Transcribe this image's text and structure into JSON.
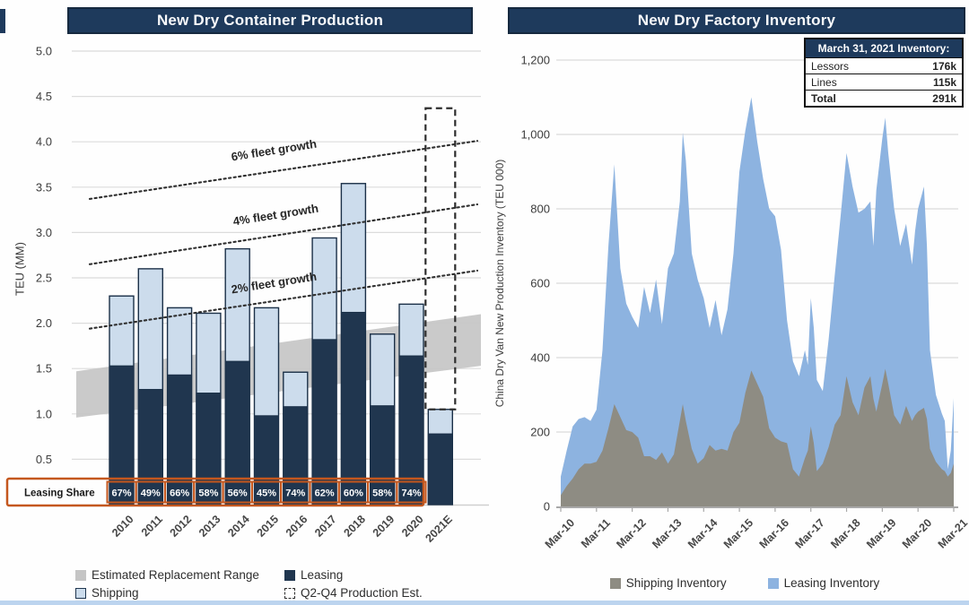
{
  "chart_data": [
    {
      "id": "production",
      "type": "bar",
      "title": "New Dry Container Production",
      "ylabel": "TEU (MM)",
      "ylim": [
        0,
        5.0
      ],
      "ytick_step": 0.5,
      "ytick_labels": [
        "0.5",
        "1.0",
        "1.5",
        "2.0",
        "2.5",
        "3.0",
        "3.5",
        "4.0",
        "4.5",
        "5.0"
      ],
      "categories": [
        "2010",
        "2011",
        "2012",
        "2013",
        "2014",
        "2015",
        "2016",
        "2017",
        "2018",
        "2019",
        "2020",
        "2021E"
      ],
      "series": [
        {
          "name": "Leasing",
          "color": "#20364f",
          "values": [
            1.53,
            1.27,
            1.43,
            1.23,
            1.58,
            0.98,
            1.08,
            1.82,
            2.12,
            1.09,
            1.64,
            0.78
          ]
        },
        {
          "name": "Shipping",
          "color": "#ccdcec",
          "values": [
            0.77,
            1.33,
            0.74,
            0.88,
            1.24,
            1.19,
            0.38,
            1.12,
            1.42,
            0.79,
            0.57,
            0.27
          ]
        }
      ],
      "bar_totals": [
        2.3,
        2.6,
        2.17,
        2.11,
        2.82,
        2.17,
        1.46,
        2.94,
        3.54,
        1.88,
        2.21,
        1.05
      ],
      "leasing_share": {
        "label": "Leasing Share",
        "values": [
          "67%",
          "49%",
          "66%",
          "58%",
          "56%",
          "45%",
          "74%",
          "62%",
          "60%",
          "58%",
          "74%"
        ],
        "box_color": "#c4571e"
      },
      "growth_lines": [
        {
          "label": "2% fleet growth",
          "start": 1.94,
          "end": 2.58
        },
        {
          "label": "4% fleet growth",
          "start": 2.65,
          "end": 3.31
        },
        {
          "label": "6% fleet growth",
          "start": 3.37,
          "end": 4.01
        }
      ],
      "replacement_band": {
        "label": "Estimated Replacement Range",
        "start_range": [
          0.96,
          1.47
        ],
        "end_range": [
          1.53,
          2.1
        ],
        "color": "#c5c5c5"
      },
      "production_est_box": {
        "label": "Q2-Q4 Production Est.",
        "category": "2021E",
        "from": 1.05,
        "to": 4.37
      },
      "legend": [
        {
          "name": "Estimated Replacement Range",
          "swatch": "band"
        },
        {
          "name": "Leasing",
          "swatch": "leasing"
        },
        {
          "name": "Shipping",
          "swatch": "shipping"
        },
        {
          "name": "Q2-Q4 Production Est.",
          "swatch": "dashed"
        }
      ]
    },
    {
      "id": "inventory",
      "type": "area",
      "stacked": true,
      "title": "New Dry Factory Inventory",
      "ylabel": "China Dry Van New Production Inventory (TEU 000)",
      "ylim": [
        0,
        1200
      ],
      "ytick_step": 200,
      "ytick_labels": [
        "0",
        "200",
        "400",
        "600",
        "800",
        "1,000",
        "1,200"
      ],
      "xtick_labels": [
        "Mar-10",
        "Mar-11",
        "Mar-12",
        "Mar-13",
        "Mar-14",
        "Mar-15",
        "Mar-16",
        "Mar-17",
        "Mar-18",
        "Mar-19",
        "Mar-20",
        "Mar-21"
      ],
      "months_per_xtick": 12,
      "x_months": [
        0,
        2,
        4,
        6,
        8,
        10,
        12,
        14,
        16,
        18,
        20,
        22,
        24,
        26,
        28,
        30,
        32,
        34,
        36,
        38,
        40,
        41,
        42,
        44,
        46,
        48,
        50,
        52,
        54,
        56,
        58,
        60,
        62,
        64,
        66,
        68,
        70,
        72,
        74,
        76,
        78,
        80,
        82,
        83,
        84,
        85,
        86,
        88,
        90,
        92,
        94,
        96,
        98,
        100,
        102,
        104,
        105,
        106,
        108,
        109,
        110,
        112,
        114,
        116,
        118,
        119,
        120,
        122,
        123,
        124,
        126,
        128,
        129,
        130,
        131,
        132
      ],
      "series": [
        {
          "name": "Shipping Inventory",
          "color": "#8e8c83",
          "values": [
            30,
            55,
            75,
            100,
            115,
            115,
            120,
            150,
            210,
            275,
            240,
            205,
            200,
            185,
            135,
            135,
            125,
            145,
            115,
            140,
            230,
            275,
            230,
            155,
            115,
            130,
            165,
            150,
            155,
            150,
            200,
            225,
            305,
            365,
            330,
            295,
            210,
            185,
            175,
            170,
            100,
            80,
            130,
            150,
            215,
            170,
            95,
            115,
            160,
            220,
            245,
            350,
            280,
            245,
            320,
            350,
            290,
            255,
            330,
            370,
            330,
            245,
            220,
            270,
            230,
            245,
            255,
            265,
            235,
            155,
            120,
            100,
            95,
            80,
            90,
            115
          ]
        },
        {
          "name": "Leasing Inventory",
          "color": "#8db3e0",
          "values": [
            50,
            95,
            140,
            135,
            125,
            115,
            140,
            270,
            490,
            645,
            400,
            340,
            310,
            295,
            455,
            385,
            485,
            345,
            525,
            540,
            590,
            730,
            700,
            525,
            495,
            430,
            315,
            405,
            305,
            380,
            480,
            675,
            705,
            735,
            650,
            585,
            590,
            595,
            515,
            330,
            290,
            270,
            290,
            230,
            345,
            310,
            245,
            195,
            290,
            400,
            535,
            600,
            580,
            545,
            480,
            470,
            410,
            595,
            660,
            675,
            620,
            555,
            480,
            490,
            420,
            495,
            545,
            595,
            465,
            265,
            180,
            150,
            135,
            20,
            60,
            176
          ]
        }
      ],
      "inventory_table": {
        "title": "March 31, 2021 Inventory:",
        "rows": [
          {
            "label": "Lessors",
            "value": "176k"
          },
          {
            "label": "Lines",
            "value": "115k"
          },
          {
            "label": "Total",
            "value": "291k"
          }
        ]
      }
    }
  ],
  "colors": {
    "title_bar": "#1e3a5c",
    "leasing_bar": "#20364f",
    "shipping_bar": "#ccdcec",
    "replacement_band": "#c5c5c5",
    "leasing_share_box": "#c4571e",
    "inventory_leasing": "#8db3e0",
    "inventory_shipping": "#8e8c83",
    "gridline": "#dcdcdc"
  }
}
